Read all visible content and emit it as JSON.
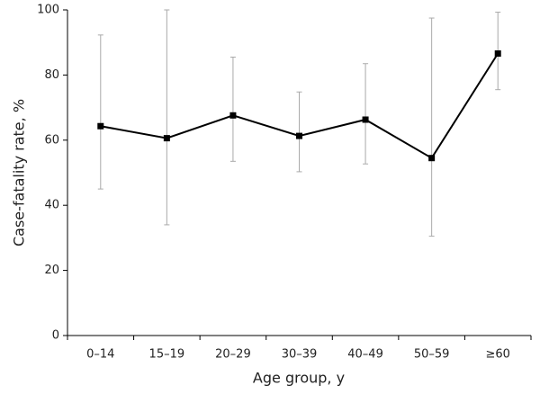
{
  "chart_data": {
    "type": "line",
    "x_label": "Age group, y",
    "y_label": "Case-fatality rate, %",
    "categories": [
      "0–14",
      "15–19",
      "20–29",
      "30–39",
      "40–49",
      "50–59",
      "≥60"
    ],
    "values": [
      64.3,
      60.6,
      67.6,
      61.3,
      66.3,
      54.5,
      86.6
    ],
    "ci_low": [
      45,
      34,
      53.5,
      50.3,
      52.7,
      30.5,
      75.5
    ],
    "ci_high": [
      92.3,
      100,
      85.5,
      74.8,
      83.5,
      97.5,
      99.3
    ],
    "color": "#000000",
    "error_color": "#aaaaaa",
    "ylim": [
      0,
      100
    ],
    "yticks": [
      0,
      20,
      40,
      60,
      80,
      100
    ]
  }
}
